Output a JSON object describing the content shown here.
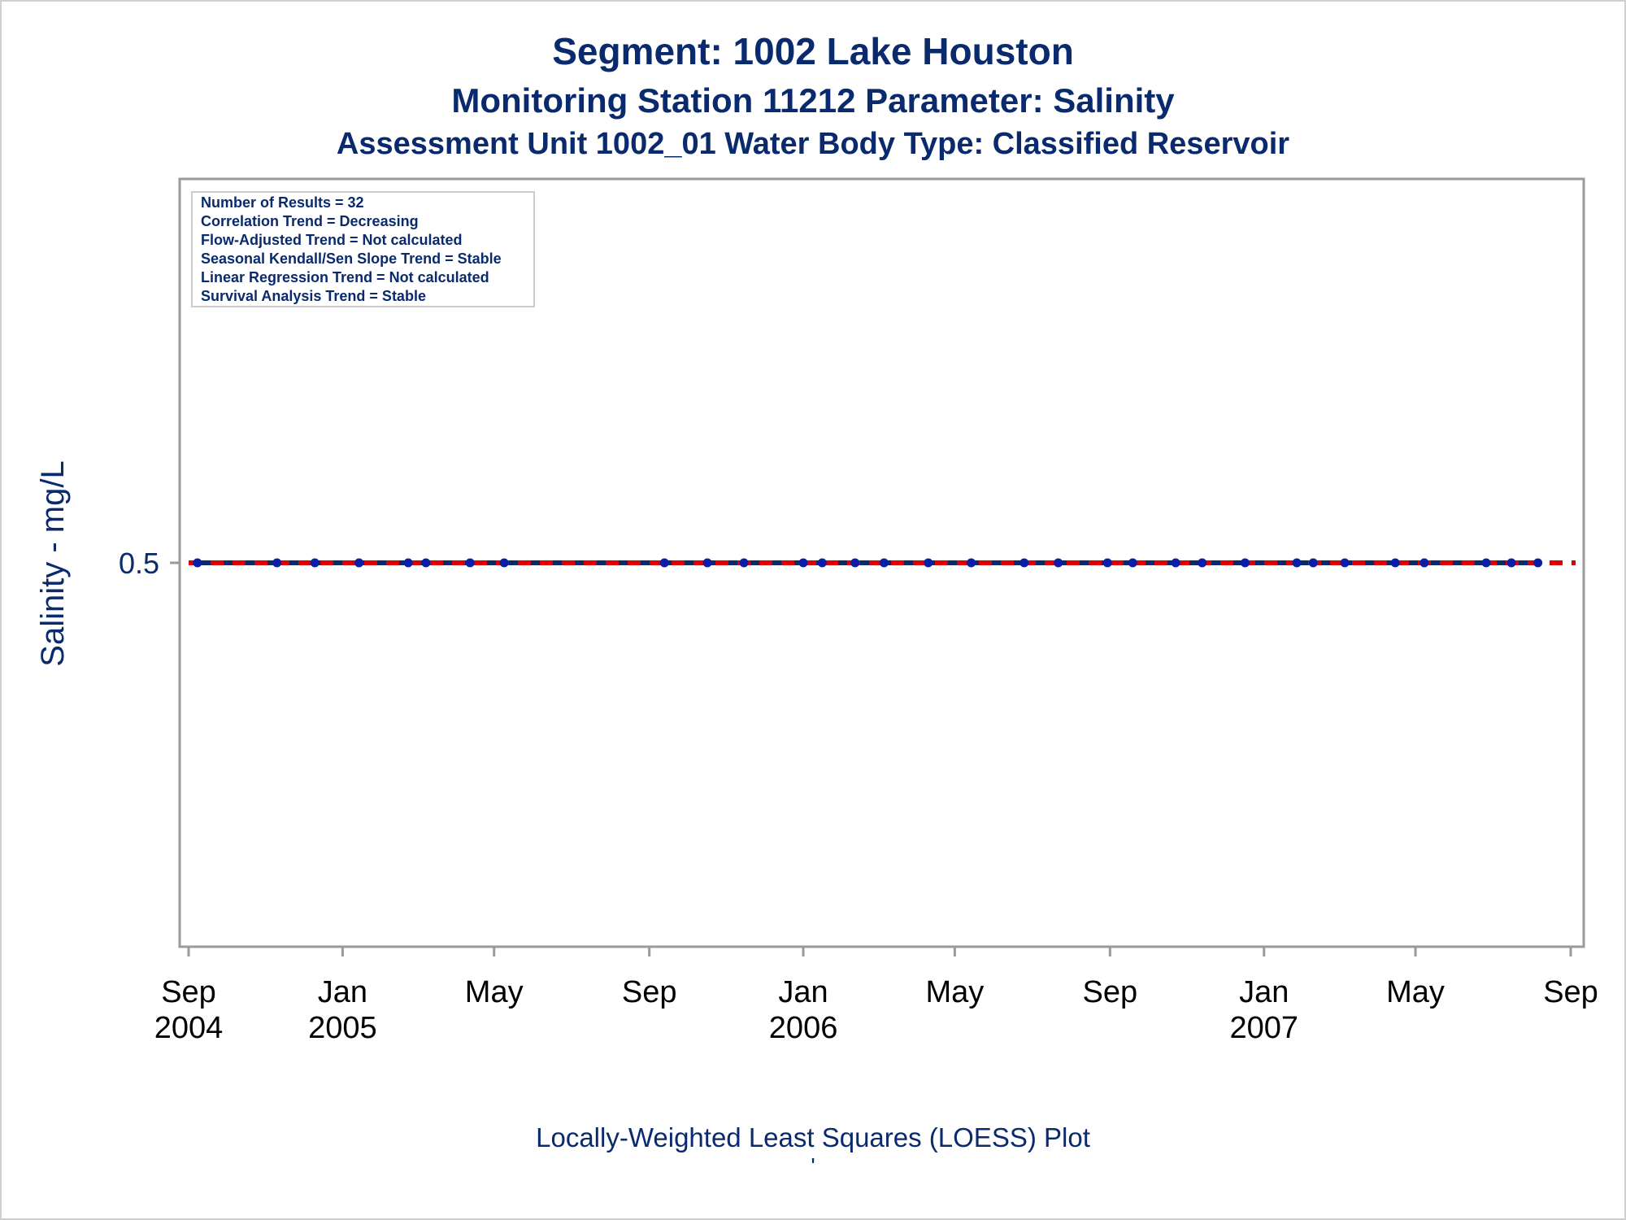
{
  "header": {
    "title": "Segment: 1002  Lake Houston",
    "subtitle": "Monitoring Station 11212 Parameter: Salinity",
    "subtitle2": "Assessment Unit 1002_01   Water Body Type: Classified Reservoir"
  },
  "stats_box": {
    "lines": [
      "Number of Results = 32",
      "Correlation Trend = Decreasing",
      "Flow-Adjusted Trend = Not calculated",
      "Seasonal Kendall/Sen Slope Trend = Stable",
      "Linear Regression Trend = Not calculated",
      "Survival Analysis Trend = Stable"
    ]
  },
  "footer": {
    "note": "Locally-Weighted Least Squares (LOESS) Plot",
    "mark": "'"
  },
  "colors": {
    "text": "#0a2a6e",
    "points": "#0a1fa8",
    "loess_line": "#0a2a6e",
    "criterion_line": "#dd0000",
    "axis": "#9a9a9a"
  },
  "chart_data": {
    "type": "scatter",
    "ylabel": "Salinity - mg/L",
    "xlabel": "",
    "xlim": [
      "2004-09-01",
      "2007-09-01"
    ],
    "ylim": [
      0.0,
      1.0
    ],
    "y_ticks": [
      0.5
    ],
    "y_tick_labels": [
      "0.5"
    ],
    "x_ticks": [
      "2004-09-01",
      "2005-01-01",
      "2005-05-01",
      "2005-09-01",
      "2006-01-01",
      "2006-05-01",
      "2006-09-01",
      "2007-01-01",
      "2007-05-01",
      "2007-09-01"
    ],
    "x_tick_labels": [
      [
        "Sep",
        "2004"
      ],
      [
        "Jan",
        "2005"
      ],
      [
        "May",
        ""
      ],
      [
        "Sep",
        ""
      ],
      [
        "Jan",
        "2006"
      ],
      [
        "May",
        ""
      ],
      [
        "Sep",
        ""
      ],
      [
        "Jan",
        "2007"
      ],
      [
        "May",
        ""
      ],
      [
        "Sep",
        ""
      ]
    ],
    "series": [
      {
        "type": "scatter",
        "x": [
          "2004-09-08",
          "2004-11-10",
          "2004-12-10",
          "2005-01-14",
          "2005-02-22",
          "2005-03-08",
          "2005-04-12",
          "2005-05-09",
          "2005-09-13",
          "2005-10-17",
          "2005-11-15",
          "2006-01-01",
          "2006-01-16",
          "2006-02-11",
          "2006-03-06",
          "2006-04-10",
          "2006-05-14",
          "2006-06-25",
          "2006-07-22",
          "2006-08-30",
          "2006-09-19",
          "2006-10-23",
          "2006-11-13",
          "2006-12-17",
          "2007-01-27",
          "2007-02-09",
          "2007-03-06",
          "2007-04-15",
          "2007-05-08",
          "2007-06-26",
          "2007-07-16",
          "2007-08-06"
        ],
        "y": [
          0.5,
          0.5,
          0.5,
          0.5,
          0.5,
          0.5,
          0.5,
          0.5,
          0.5,
          0.5,
          0.5,
          0.5,
          0.5,
          0.5,
          0.5,
          0.5,
          0.5,
          0.5,
          0.5,
          0.5,
          0.5,
          0.5,
          0.5,
          0.5,
          0.5,
          0.5,
          0.5,
          0.5,
          0.5,
          0.5,
          0.5,
          0.5
        ]
      },
      {
        "type": "line",
        "style": "solid",
        "x": [
          "2004-09-08",
          "2007-08-06"
        ],
        "y": [
          0.5,
          0.5
        ]
      },
      {
        "type": "line",
        "style": "dashed",
        "x": [
          "2004-09-01",
          "2007-09-01"
        ],
        "y": [
          0.5,
          0.5
        ]
      }
    ]
  }
}
